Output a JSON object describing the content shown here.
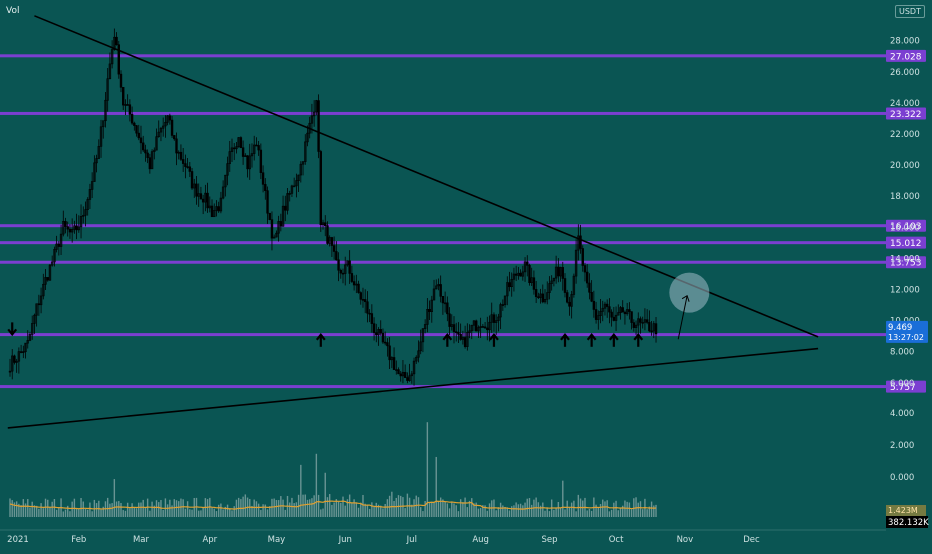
{
  "header": {
    "indicator_label": "Vol",
    "currency": "USDT"
  },
  "colors": {
    "background": "#0a5553",
    "candle": "#000000",
    "level_line": "#7b3fd1",
    "level_tag": "#7b3fd1",
    "trendline": "#000000",
    "volume_bar": "#b8c9c9",
    "volume_ma": "#e0a030",
    "axis_text": "#cfe2e2",
    "price_tag": "#7b3fd1",
    "current_price_tag": "#1a6ed8",
    "volume_tag": "#000000"
  },
  "chart_data": {
    "type": "candlestick",
    "title": "",
    "y_axis": {
      "ticks": [
        "28.000",
        "26.000",
        "24.000",
        "22.000",
        "20.000",
        "18.000",
        "16.000",
        "14.000",
        "12.000",
        "10.000",
        "8.000",
        "6.000",
        "4.000",
        "2.000",
        "0.000"
      ],
      "price_range": [
        5.0,
        28.0
      ]
    },
    "x_axis": {
      "ticks": [
        "2021",
        "Feb",
        "Mar",
        "Apr",
        "May",
        "Jun",
        "Jul",
        "Aug",
        "Sep",
        "Oct",
        "Nov",
        "Dec"
      ]
    },
    "horizontal_levels": [
      27.028,
      23.322,
      16.103,
      15.012,
      13.753,
      9.1,
      5.757
    ],
    "level_labels": [
      "27.028",
      "23.322",
      "16.103",
      "15.012",
      "13.753",
      "9.100",
      "5.757"
    ],
    "current_price": {
      "value": 9.469,
      "label": "9.469",
      "countdown": "13:27:02"
    },
    "volume": {
      "label": "382.132K",
      "ma_label": "1.423M"
    },
    "price_path": [
      [
        "2021-01-01",
        7.2
      ],
      [
        "2021-01-05",
        7.8
      ],
      [
        "2021-01-09",
        8.5
      ],
      [
        "2021-01-13",
        10.8
      ],
      [
        "2021-01-17",
        12.6
      ],
      [
        "2021-01-21",
        14.2
      ],
      [
        "2021-01-25",
        16.0
      ],
      [
        "2021-01-29",
        15.5
      ],
      [
        "2021-02-02",
        16.4
      ],
      [
        "2021-02-06",
        18.5
      ],
      [
        "2021-02-10",
        21.0
      ],
      [
        "2021-02-14",
        25.5
      ],
      [
        "2021-02-17",
        28.5
      ],
      [
        "2021-02-21",
        24.0
      ],
      [
        "2021-02-25",
        23.0
      ],
      [
        "2021-03-01",
        21.5
      ],
      [
        "2021-03-05",
        20.0
      ],
      [
        "2021-03-09",
        22.0
      ],
      [
        "2021-03-13",
        23.0
      ],
      [
        "2021-03-17",
        21.0
      ],
      [
        "2021-03-21",
        20.0
      ],
      [
        "2021-03-25",
        18.5
      ],
      [
        "2021-03-29",
        18.0
      ],
      [
        "2021-04-02",
        17.0
      ],
      [
        "2021-04-06",
        17.5
      ],
      [
        "2021-04-10",
        20.5
      ],
      [
        "2021-04-14",
        22.0
      ],
      [
        "2021-04-18",
        20.0
      ],
      [
        "2021-04-22",
        21.5
      ],
      [
        "2021-04-26",
        18.0
      ],
      [
        "2021-04-30",
        15.0
      ],
      [
        "2021-05-04",
        17.0
      ],
      [
        "2021-05-08",
        18.5
      ],
      [
        "2021-05-12",
        20.0
      ],
      [
        "2021-05-16",
        22.5
      ],
      [
        "2021-05-19",
        24.5
      ],
      [
        "2021-05-21",
        16.5
      ],
      [
        "2021-05-25",
        15.0
      ],
      [
        "2021-05-29",
        13.0
      ],
      [
        "2021-06-02",
        13.5
      ],
      [
        "2021-06-06",
        12.0
      ],
      [
        "2021-06-10",
        11.0
      ],
      [
        "2021-06-14",
        9.5
      ],
      [
        "2021-06-18",
        8.5
      ],
      [
        "2021-06-22",
        7.5
      ],
      [
        "2021-06-26",
        6.2
      ],
      [
        "2021-06-30",
        6.5
      ],
      [
        "2021-07-04",
        8.0
      ],
      [
        "2021-07-08",
        10.5
      ],
      [
        "2021-07-12",
        12.5
      ],
      [
        "2021-07-16",
        11.0
      ],
      [
        "2021-07-20",
        9.0
      ],
      [
        "2021-07-24",
        8.5
      ],
      [
        "2021-07-28",
        9.5
      ],
      [
        "2021-08-01",
        10.0
      ],
      [
        "2021-08-05",
        9.8
      ],
      [
        "2021-08-09",
        10.5
      ],
      [
        "2021-08-13",
        12.0
      ],
      [
        "2021-08-17",
        13.0
      ],
      [
        "2021-08-21",
        13.5
      ],
      [
        "2021-08-25",
        12.0
      ],
      [
        "2021-08-29",
        11.5
      ],
      [
        "2021-09-02",
        12.5
      ],
      [
        "2021-09-06",
        13.5
      ],
      [
        "2021-09-10",
        11.0
      ],
      [
        "2021-09-14",
        15.2
      ],
      [
        "2021-09-18",
        12.0
      ],
      [
        "2021-09-22",
        10.2
      ],
      [
        "2021-09-26",
        11.0
      ],
      [
        "2021-09-30",
        9.8
      ],
      [
        "2021-10-04",
        10.6
      ],
      [
        "2021-10-08",
        10.0
      ],
      [
        "2021-10-12",
        9.7
      ],
      [
        "2021-10-16",
        9.6
      ],
      [
        "2021-10-20",
        9.47
      ]
    ],
    "volume_spikes": [
      [
        "2021-02-17",
        2.4
      ],
      [
        "2021-05-12",
        3.3
      ],
      [
        "2021-05-19",
        4.0
      ],
      [
        "2021-05-23",
        2.8
      ],
      [
        "2021-06-22",
        1.6
      ],
      [
        "2021-07-08",
        6.0
      ],
      [
        "2021-07-12",
        3.8
      ],
      [
        "2021-09-07",
        2.3
      ],
      [
        "2021-09-14",
        1.4
      ]
    ],
    "trendlines": [
      {
        "name": "upper",
        "from": [
          "2021-01-12",
          29.6
        ],
        "to": [
          "2021-12-31",
          8.95
        ]
      },
      {
        "name": "lower",
        "from": [
          "2020-12-31",
          3.1
        ],
        "to": [
          "2021-12-31",
          8.2
        ]
      }
    ],
    "arrows": {
      "down": [
        [
          "2021-01-02",
          9.5
        ]
      ],
      "up": [
        [
          "2021-05-21",
          8.7
        ],
        [
          "2021-07-17",
          8.7
        ],
        [
          "2021-08-07",
          8.7
        ],
        [
          "2021-09-08",
          8.7
        ],
        [
          "2021-09-20",
          8.7
        ],
        [
          "2021-09-30",
          8.7
        ],
        [
          "2021-10-11",
          8.7
        ]
      ]
    },
    "highlight": {
      "circle_at": [
        "2021-11-03",
        11.8
      ],
      "arrow_from": [
        "2021-10-29",
        8.8
      ],
      "arrow_to": [
        "2021-11-02",
        11.6
      ]
    }
  }
}
